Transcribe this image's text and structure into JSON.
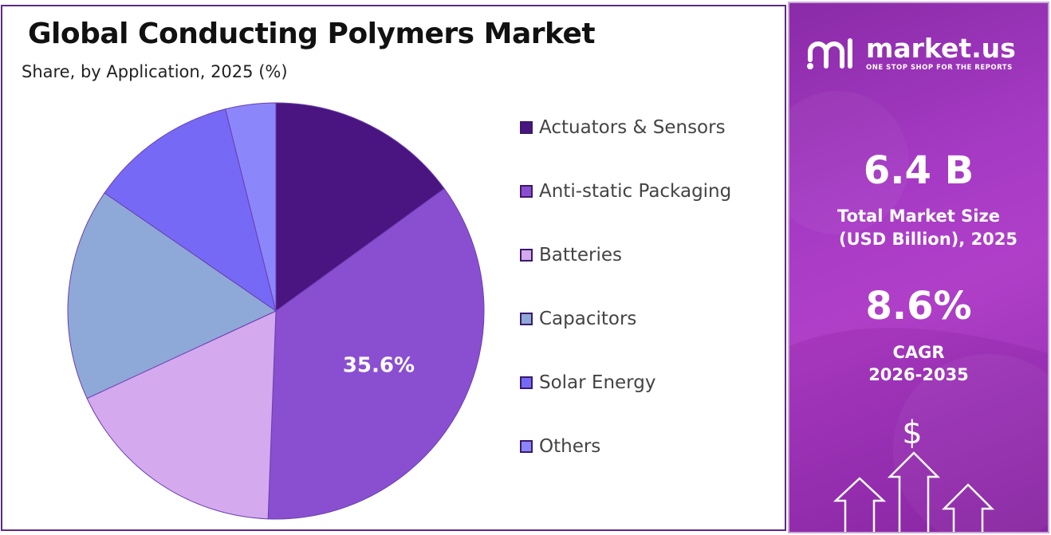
{
  "chart_data": {
    "type": "pie",
    "title": "Global Conducting Polymers Market",
    "subtitle": "Share, by Application, 2025 (%)",
    "categories": [
      "Actuators & Sensors",
      "Anti-static Packaging",
      "Batteries",
      "Capacitors",
      "Solar Energy",
      "Others"
    ],
    "values": [
      15.0,
      35.6,
      17.5,
      16.5,
      11.5,
      3.9
    ],
    "colors": [
      "#4a1580",
      "#8a4fd1",
      "#d4a9ee",
      "#8ea8d8",
      "#7669f5",
      "#8c86fb"
    ],
    "data_labels": [
      "",
      "35.6%",
      "",
      "",
      "",
      ""
    ],
    "legend_position": "right"
  },
  "sidebar": {
    "brand_name": "market.us",
    "brand_tagline": "ONE STOP SHOP FOR THE REPORTS",
    "market_size_value": "6.4 B",
    "market_size_label_line1": "Total Market Size",
    "market_size_label_line2": "(USD Billion), 2025",
    "cagr_value": "8.6%",
    "cagr_label_line1": "CAGR",
    "cagr_label_line2": "2026-2035",
    "currency_symbol": "$",
    "icons": [
      "market-us-logo-icon",
      "dollar-icon",
      "growth-arrows-icon"
    ]
  }
}
